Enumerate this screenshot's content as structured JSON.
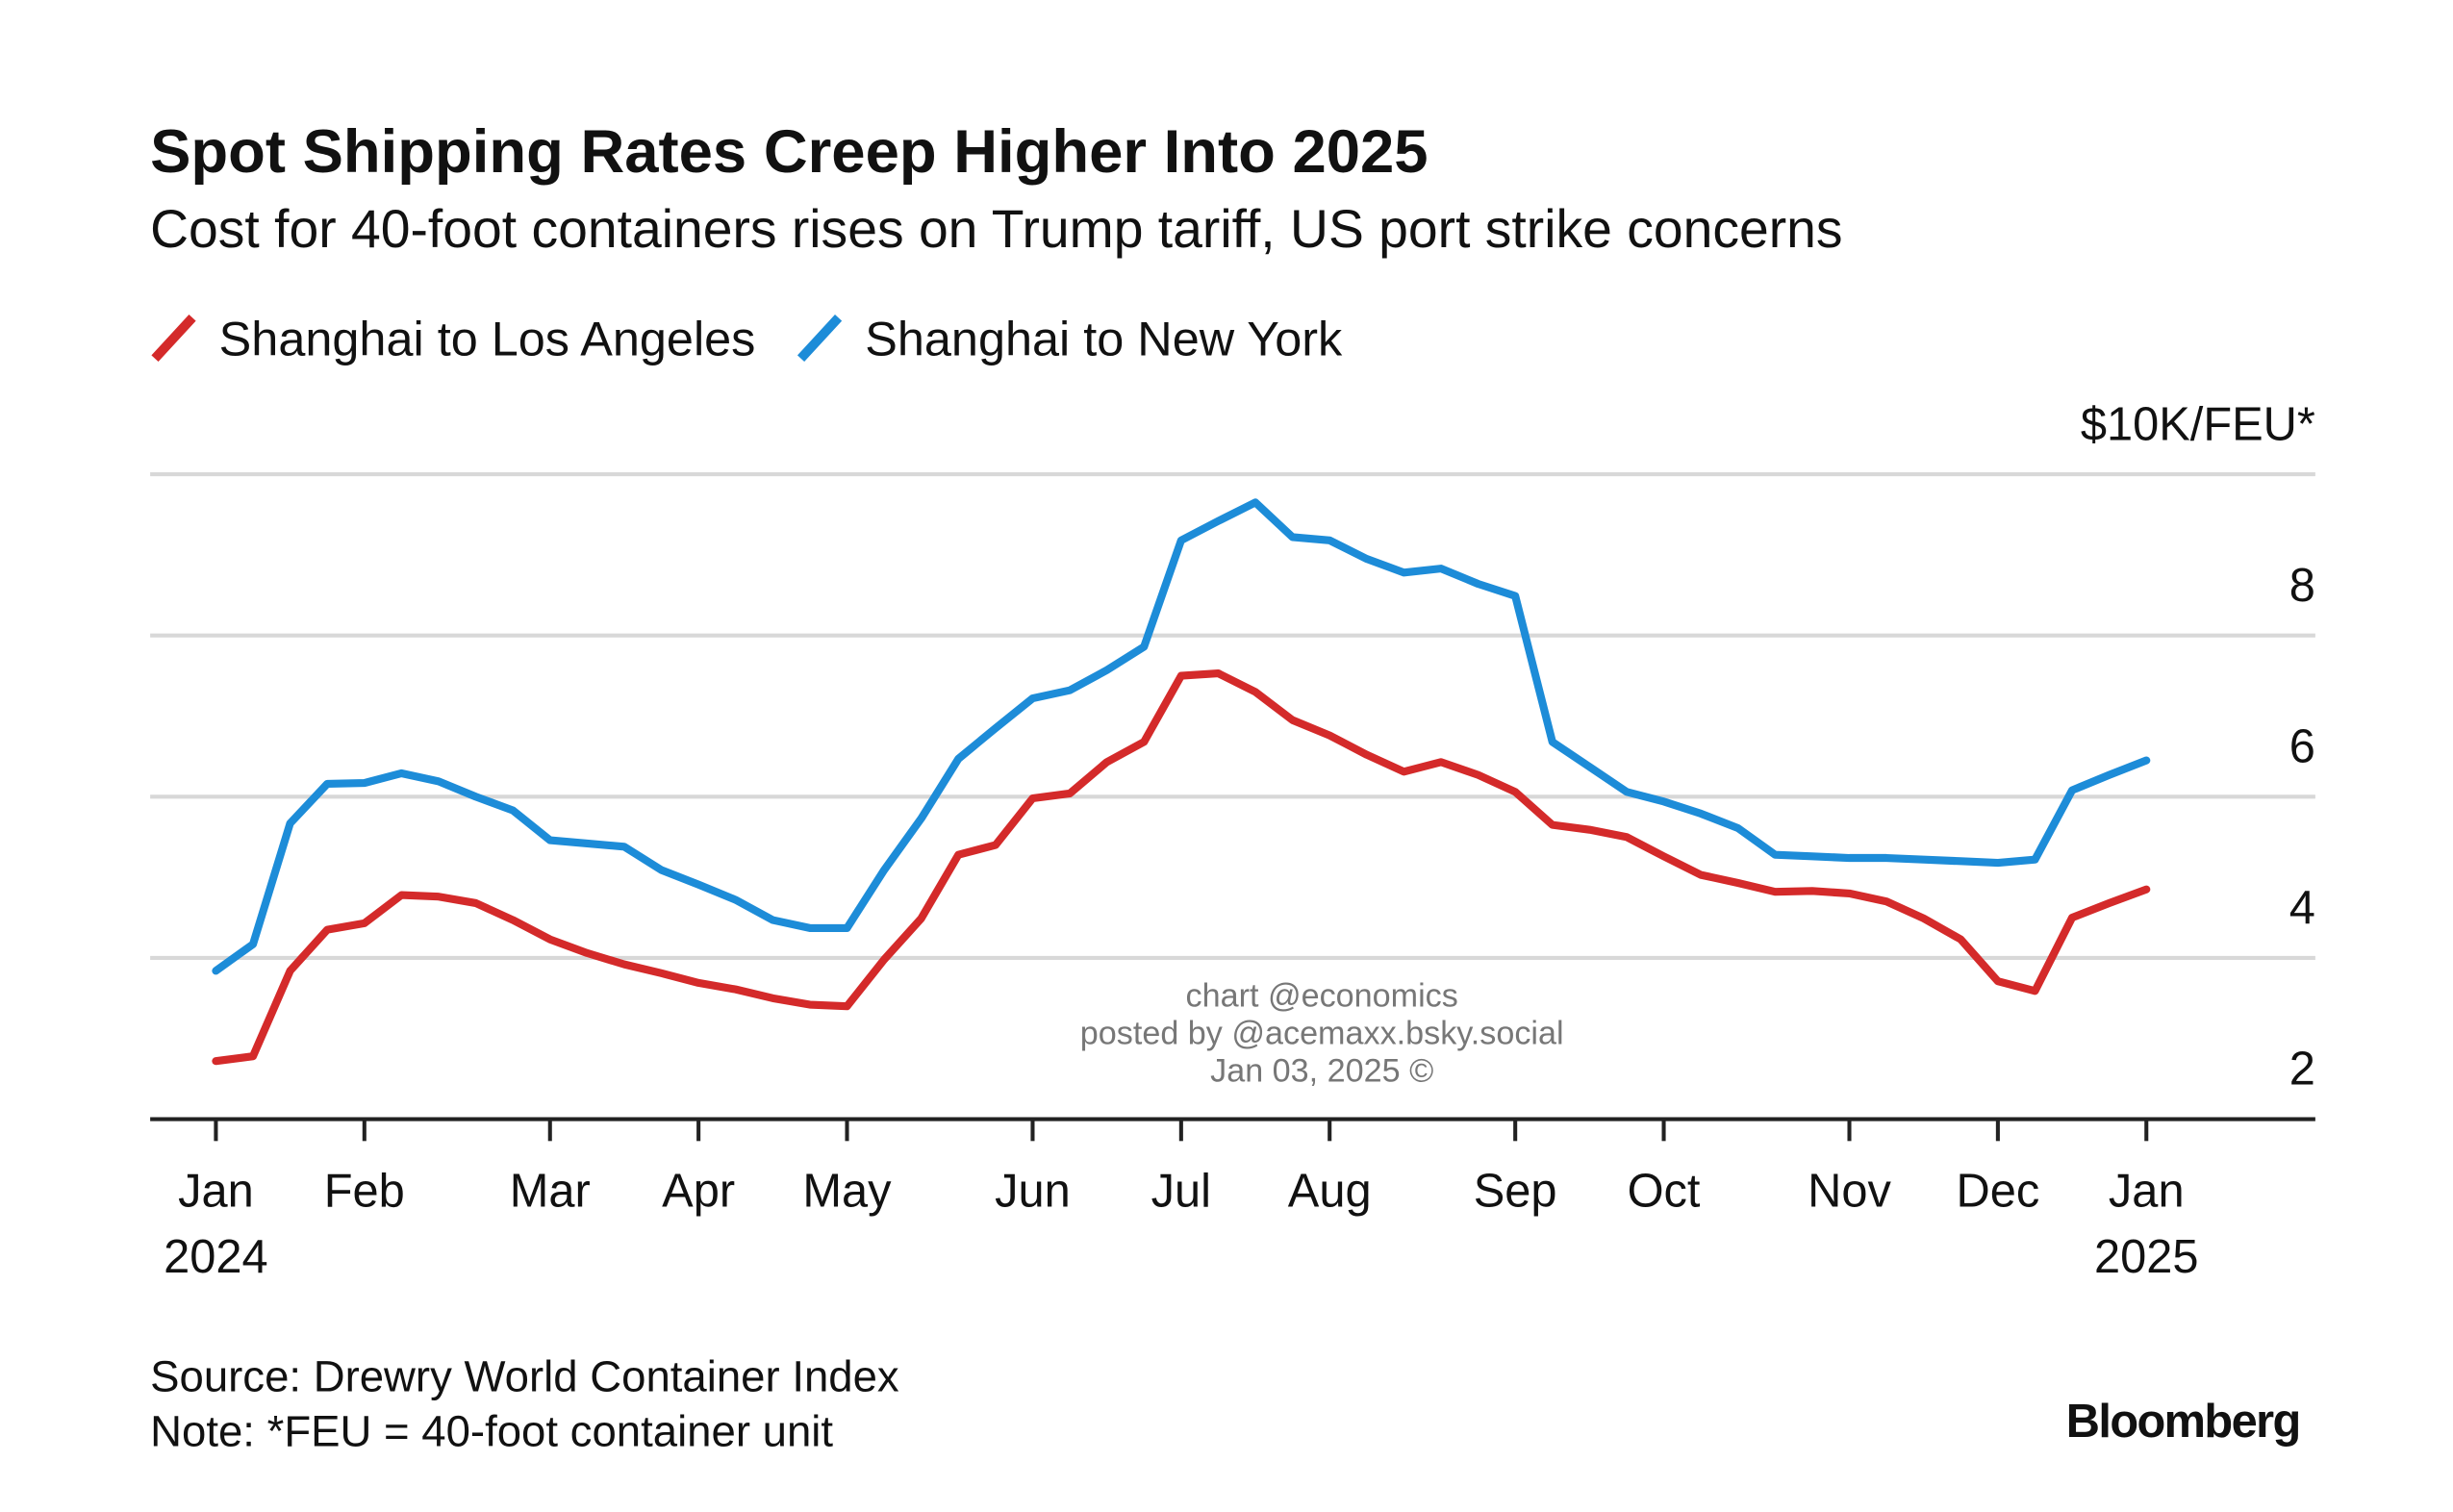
{
  "chart_data": {
    "type": "line",
    "title": "Spot Shipping Rates Creep Higher Into 2025",
    "subtitle": "Cost for 40-foot containers rises on Trump tariff, US port strike concerns",
    "categories": [
      "Jan\n2024",
      null,
      null,
      null,
      "Feb",
      null,
      null,
      null,
      null,
      "Mar",
      null,
      null,
      null,
      "Apr",
      null,
      null,
      null,
      "May",
      null,
      null,
      null,
      null,
      "Jun",
      null,
      null,
      null,
      "Jul",
      null,
      null,
      null,
      "Aug",
      null,
      null,
      null,
      null,
      "Sep",
      null,
      null,
      null,
      "Oct",
      null,
      null,
      null,
      null,
      "Nov",
      null,
      null,
      null,
      "Dec",
      null,
      null,
      null,
      "Jan\n2025"
    ],
    "series": [
      {
        "name": "Shanghai to Los Angeles",
        "color": "#d42a2a",
        "values": [
          2.72,
          2.78,
          3.84,
          4.35,
          4.43,
          4.78,
          4.76,
          4.68,
          4.47,
          4.23,
          4.06,
          3.92,
          3.81,
          3.69,
          3.61,
          3.5,
          3.42,
          3.4,
          3.98,
          4.49,
          5.28,
          5.4,
          5.98,
          6.04,
          6.43,
          6.68,
          7.5,
          7.53,
          7.3,
          6.95,
          6.76,
          6.52,
          6.31,
          6.43,
          6.27,
          6.06,
          5.65,
          5.59,
          5.5,
          5.26,
          5.03,
          4.93,
          4.82,
          4.83,
          4.8,
          4.7,
          4.49,
          4.23,
          3.71,
          3.59,
          4.5,
          4.68,
          4.85
        ]
      },
      {
        "name": "Shanghai to New York",
        "color": "#1d8cd8",
        "values": [
          3.84,
          4.17,
          5.67,
          6.16,
          6.17,
          6.29,
          6.19,
          6.0,
          5.83,
          5.46,
          5.42,
          5.38,
          5.09,
          4.91,
          4.72,
          4.47,
          4.37,
          4.37,
          5.09,
          5.73,
          6.47,
          6.85,
          7.22,
          7.32,
          7.57,
          7.86,
          9.18,
          9.42,
          9.65,
          9.22,
          9.18,
          8.95,
          8.78,
          8.83,
          8.64,
          8.49,
          6.68,
          6.37,
          6.06,
          5.94,
          5.79,
          5.61,
          5.28,
          5.26,
          5.24,
          5.24,
          5.22,
          5.2,
          5.18,
          5.22,
          6.08,
          6.27,
          6.45
        ]
      }
    ],
    "ylim": [
      2,
      10
    ],
    "yticks": [
      2,
      4,
      6,
      8,
      {
        "value": 10,
        "label": "$10K/FEU*"
      }
    ],
    "grid": true,
    "legend": "top-left",
    "annotations": [
      "chart @economics",
      "posted by @acemaxx.bsky.social",
      "Jan 03, 2025 ©"
    ],
    "source": "Source: Drewry World Container Index",
    "note": "Note: *FEU = 40-foot container unit",
    "brand": "Bloomberg"
  }
}
